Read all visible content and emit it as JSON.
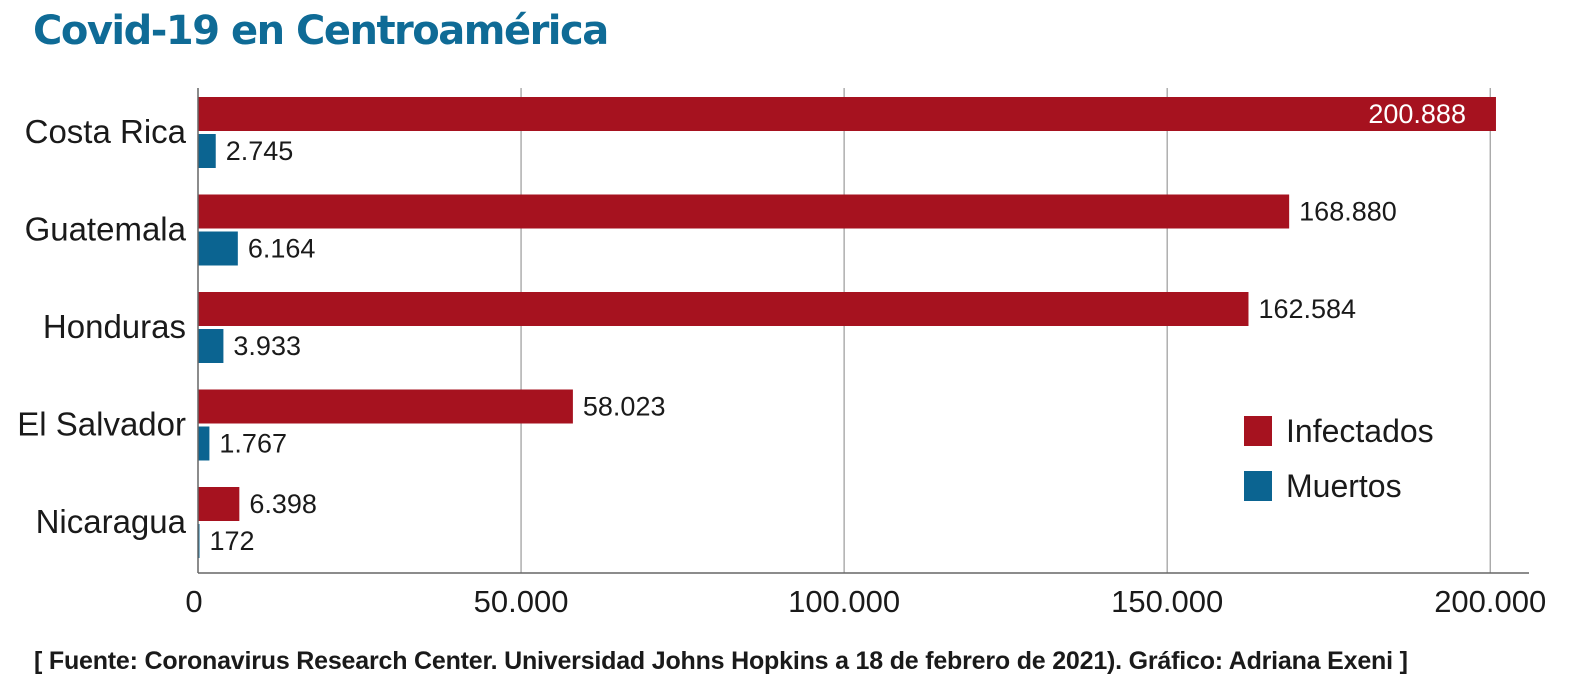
{
  "title": "Covid-19 en Centroamérica",
  "source": "[ Fuente: Coronavirus Research Center. Universidad Johns Hopkins a 18 de febrero de 2021). Gráfico: Adriana Exeni ]",
  "colors": {
    "title": "#0f6b96",
    "infectados": "#a6121f",
    "muertos": "#0b6491",
    "grid": "#9a9a9a"
  },
  "chart_data": {
    "type": "bar",
    "orientation": "horizontal",
    "categories": [
      "Costa Rica",
      "Guatemala",
      "Honduras",
      "El Salvador",
      "Nicaragua"
    ],
    "series": [
      {
        "name": "Infectados",
        "values": [
          200888,
          168880,
          162584,
          58023,
          6398
        ],
        "labels": [
          "200.888",
          "168.880",
          "162.584",
          "58.023",
          "6.398"
        ]
      },
      {
        "name": "Muertos",
        "values": [
          2745,
          6164,
          3933,
          1767,
          172
        ],
        "labels": [
          "2.745",
          "6.164",
          "3.933",
          "1.767",
          "172"
        ]
      }
    ],
    "xlim": [
      0,
      206000
    ],
    "xticks": [
      0,
      50000,
      100000,
      150000,
      200000
    ],
    "xtick_labels": [
      "0",
      "50.000",
      "100.000",
      "150.000",
      "200.000"
    ],
    "grid": true,
    "legend_position": "right"
  }
}
